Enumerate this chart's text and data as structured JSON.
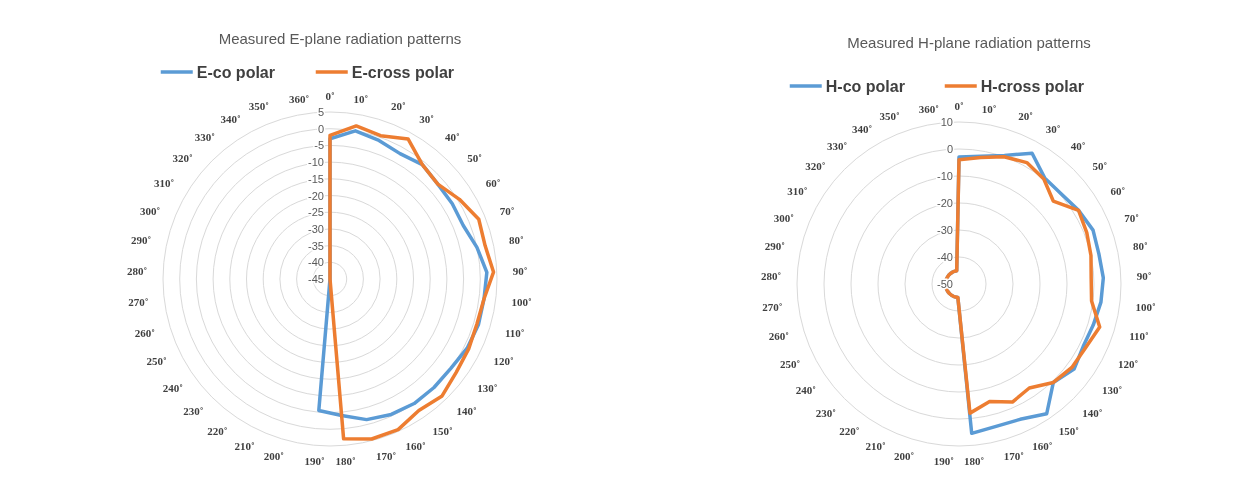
{
  "chart_data": [
    {
      "type": "radar",
      "title": "Measured E-plane radiation patterns",
      "categories": [
        "0˚",
        "10˚",
        "20˚",
        "30˚",
        "40˚",
        "50˚",
        "60˚",
        "70˚",
        "80˚",
        "90˚",
        "100˚",
        "110˚",
        "120˚",
        "130˚",
        "140˚",
        "150˚",
        "160˚",
        "170˚",
        "180˚",
        "190˚",
        "200˚",
        "210˚",
        "220˚",
        "230˚",
        "240˚",
        "250˚",
        "260˚",
        "270˚",
        "280˚",
        "290˚",
        "300˚",
        "310˚",
        "320˚",
        "330˚",
        "340˚",
        "350˚",
        "360˚"
      ],
      "series": [
        {
          "name": "E-co polar",
          "color": "#5b9bd5",
          "values": [
            -3,
            0,
            -1,
            -2,
            -1,
            -2,
            -2,
            -2,
            0,
            2,
            1.5,
            1.5,
            1,
            0,
            0,
            0,
            -0.5,
            -1.5,
            -4,
            -5.5,
            -45,
            -45,
            -45,
            -45,
            -45,
            -45,
            -45,
            -45,
            -45,
            -45,
            -45,
            -45,
            -45,
            -45,
            -45,
            -45,
            -45
          ]
        },
        {
          "name": "E-cross polar",
          "color": "#ed7d31",
          "values": [
            -2,
            1.5,
            0.5,
            3,
            -1,
            -2,
            0.5,
            3,
            2.5,
            4,
            1.5,
            1,
            1.5,
            2,
            3.5,
            2.5,
            4.5,
            4.5,
            3,
            -45,
            -45,
            -45,
            -45,
            -45,
            -45,
            -45,
            -45,
            -45,
            -45,
            -45,
            -45,
            -45,
            -45,
            -45,
            -45,
            -45,
            -45
          ]
        }
      ],
      "ylim": [
        -45,
        5
      ],
      "yticks": [
        -45,
        -40,
        -35,
        -30,
        -25,
        -20,
        -15,
        -10,
        -5,
        0,
        5
      ],
      "grid": true,
      "legend": "top"
    },
    {
      "type": "radar",
      "title": "Measured H-plane radiation patterns",
      "categories": [
        "0˚",
        "10˚",
        "20˚",
        "30˚",
        "40˚",
        "50˚",
        "60˚",
        "70˚",
        "80˚",
        "90˚",
        "100˚",
        "110˚",
        "120˚",
        "130˚",
        "140˚",
        "150˚",
        "160˚",
        "170˚",
        "180˚",
        "190˚",
        "200˚",
        "210˚",
        "220˚",
        "230˚",
        "240˚",
        "250˚",
        "260˚",
        "270˚",
        "280˚",
        "290˚",
        "300˚",
        "310˚",
        "320˚",
        "330˚",
        "340˚",
        "350˚",
        "360˚"
      ],
      "series": [
        {
          "name": "H-co polar",
          "color": "#5b9bd5",
          "values": [
            -3,
            -2,
            0.5,
            5.5,
            0.5,
            0.5,
            2,
            3.5,
            3,
            3.5,
            3,
            2,
            1.5,
            3,
            0.5,
            8,
            5,
            4.5,
            5.5,
            -45,
            -45,
            -45,
            -45,
            -45,
            -45,
            -45,
            -45,
            -45,
            -45,
            -45,
            -45,
            -45,
            -45,
            -45,
            -45,
            -45,
            -45
          ]
        },
        {
          "name": "H-cross polar",
          "color": "#ed7d31",
          "values": [
            -4,
            -2.5,
            0,
            1.5,
            0,
            -3.5,
            2,
            1,
            0,
            -1,
            -0.5,
            4.5,
            2.5,
            2,
            0.5,
            -3.5,
            -2,
            -5,
            -2,
            -45,
            -45,
            -45,
            -45,
            -45,
            -45,
            -45,
            -45,
            -45,
            -45,
            -45,
            -45,
            -45,
            -45,
            -45,
            -45,
            -45,
            -45
          ]
        }
      ],
      "ylim": [
        -50,
        10
      ],
      "yticks": [
        -50,
        -40,
        -30,
        -20,
        -10,
        0,
        10
      ],
      "grid": true,
      "legend": "top"
    }
  ]
}
